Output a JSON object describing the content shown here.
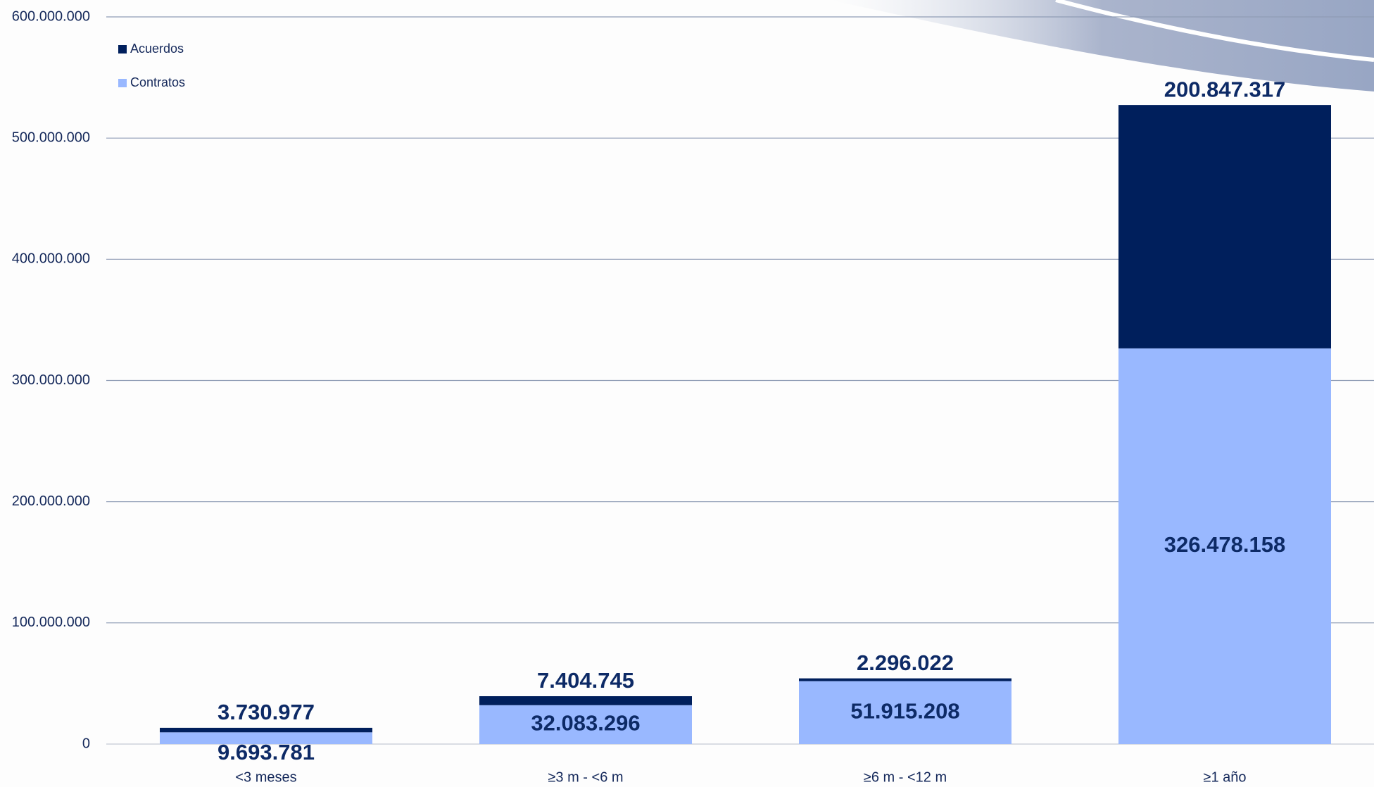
{
  "chart_data": {
    "type": "stacked-bar",
    "categories": [
      "<3 meses",
      "≥3 m - <6 m",
      "≥6 m - <12 m",
      "≥1 año"
    ],
    "series": [
      {
        "name": "Contratos",
        "color": "#99b8ff",
        "values": [
          9693781,
          32083296,
          51915208,
          326478158
        ],
        "value_labels": [
          "9.693.781",
          "32.083.296",
          "51.915.208",
          "326.478.158"
        ]
      },
      {
        "name": "Acuerdos",
        "color": "#001f5c",
        "values": [
          3730977,
          7404745,
          2296022,
          200847317
        ],
        "value_labels": [
          "3.730.977",
          "7.404.745",
          "2.296.022",
          "200.847.317"
        ]
      }
    ],
    "ylim": [
      0,
      600000000
    ],
    "yticks": [
      0,
      {
        "value": 100000000,
        "label": "100.000.000"
      },
      {
        "value": 200000000,
        "label": "200.000.000"
      },
      {
        "value": 300000000,
        "label": "300.000.000"
      },
      {
        "value": 400000000,
        "label": "400.000.000"
      },
      {
        "value": 500000000,
        "label": "500.000.000"
      },
      {
        "value": 600000000,
        "label": "600.000.000"
      }
    ],
    "grid": true,
    "legend": "top-left"
  }
}
